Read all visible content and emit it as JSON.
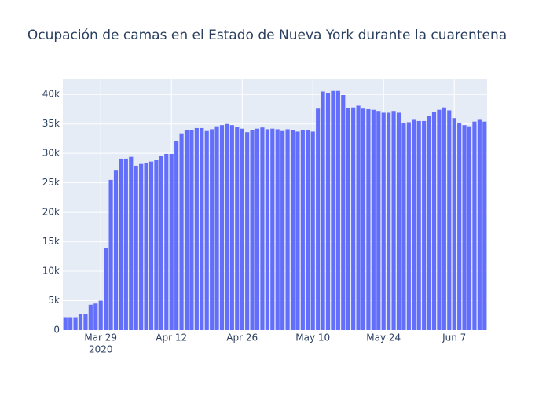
{
  "chart_data": {
    "type": "bar",
    "title": "Ocupación de camas en el Estado de Nueva York durante la cuarentena",
    "color": "#636efa",
    "x": [
      "2020-03-22",
      "2020-03-23",
      "2020-03-24",
      "2020-03-25",
      "2020-03-26",
      "2020-03-27",
      "2020-03-28",
      "2020-03-29",
      "2020-03-30",
      "2020-03-31",
      "2020-04-01",
      "2020-04-02",
      "2020-04-03",
      "2020-04-04",
      "2020-04-05",
      "2020-04-06",
      "2020-04-07",
      "2020-04-08",
      "2020-04-09",
      "2020-04-10",
      "2020-04-11",
      "2020-04-12",
      "2020-04-13",
      "2020-04-14",
      "2020-04-15",
      "2020-04-16",
      "2020-04-17",
      "2020-04-18",
      "2020-04-19",
      "2020-04-20",
      "2020-04-21",
      "2020-04-22",
      "2020-04-23",
      "2020-04-24",
      "2020-04-25",
      "2020-04-26",
      "2020-04-27",
      "2020-04-28",
      "2020-04-29",
      "2020-04-30",
      "2020-05-01",
      "2020-05-02",
      "2020-05-03",
      "2020-05-04",
      "2020-05-05",
      "2020-05-06",
      "2020-05-07",
      "2020-05-08",
      "2020-05-09",
      "2020-05-10",
      "2020-05-11",
      "2020-05-12",
      "2020-05-13",
      "2020-05-14",
      "2020-05-15",
      "2020-05-16",
      "2020-05-17",
      "2020-05-18",
      "2020-05-19",
      "2020-05-20",
      "2020-05-21",
      "2020-05-22",
      "2020-05-23",
      "2020-05-24",
      "2020-05-25",
      "2020-05-26",
      "2020-05-27",
      "2020-05-28",
      "2020-05-29",
      "2020-05-30",
      "2020-05-31",
      "2020-06-01",
      "2020-06-02",
      "2020-06-03",
      "2020-06-04",
      "2020-06-05",
      "2020-06-06",
      "2020-06-07",
      "2020-06-08",
      "2020-06-09",
      "2020-06-10",
      "2020-06-11",
      "2020-06-12",
      "2020-06-13"
    ],
    "values": [
      2200,
      2200,
      2200,
      2700,
      2700,
      4300,
      4500,
      5000,
      13900,
      25500,
      27200,
      29100,
      29100,
      29400,
      27900,
      28200,
      28400,
      28600,
      28900,
      29600,
      29900,
      29900,
      32100,
      33400,
      33900,
      34000,
      34300,
      34300,
      33800,
      34100,
      34600,
      34800,
      35000,
      34800,
      34500,
      34200,
      33600,
      34000,
      34200,
      34400,
      34100,
      34200,
      34100,
      33800,
      34100,
      34000,
      33700,
      33900,
      33900,
      33700,
      37600,
      40500,
      40300,
      40600,
      40600,
      39900,
      37700,
      37800,
      38100,
      37600,
      37500,
      37400,
      37200,
      36900,
      36900,
      37200,
      36900,
      35100,
      35300,
      35700,
      35500,
      35500,
      36300,
      37000,
      37400,
      37800,
      37300,
      36000,
      35100,
      34800,
      34600,
      35400,
      35700,
      35400
    ],
    "xlim": [
      "2020-03-21T12:00:00Z",
      "2020-06-13T12:00:00Z"
    ],
    "xticks": [
      {
        "value": "2020-03-29",
        "label": "Mar 29"
      },
      {
        "value": "2020-04-12",
        "label": "Apr 12"
      },
      {
        "value": "2020-04-26",
        "label": "Apr 26"
      },
      {
        "value": "2020-05-10",
        "label": "May 10"
      },
      {
        "value": "2020-05-24",
        "label": "May 24"
      },
      {
        "value": "2020-06-07",
        "label": "Jun 7"
      }
    ],
    "xtick_year": "2020",
    "ylim": [
      0,
      42700
    ],
    "yticks": [
      0,
      {
        "value": 5000,
        "label": "5k"
      },
      {
        "value": 10000,
        "label": "10k"
      },
      {
        "value": 15000,
        "label": "15k"
      },
      {
        "value": 20000,
        "label": "20k"
      },
      {
        "value": 25000,
        "label": "25k"
      },
      {
        "value": 30000,
        "label": "30k"
      },
      {
        "value": 35000,
        "label": "35k"
      },
      {
        "value": 40000,
        "label": "40k"
      }
    ],
    "grid": true
  }
}
